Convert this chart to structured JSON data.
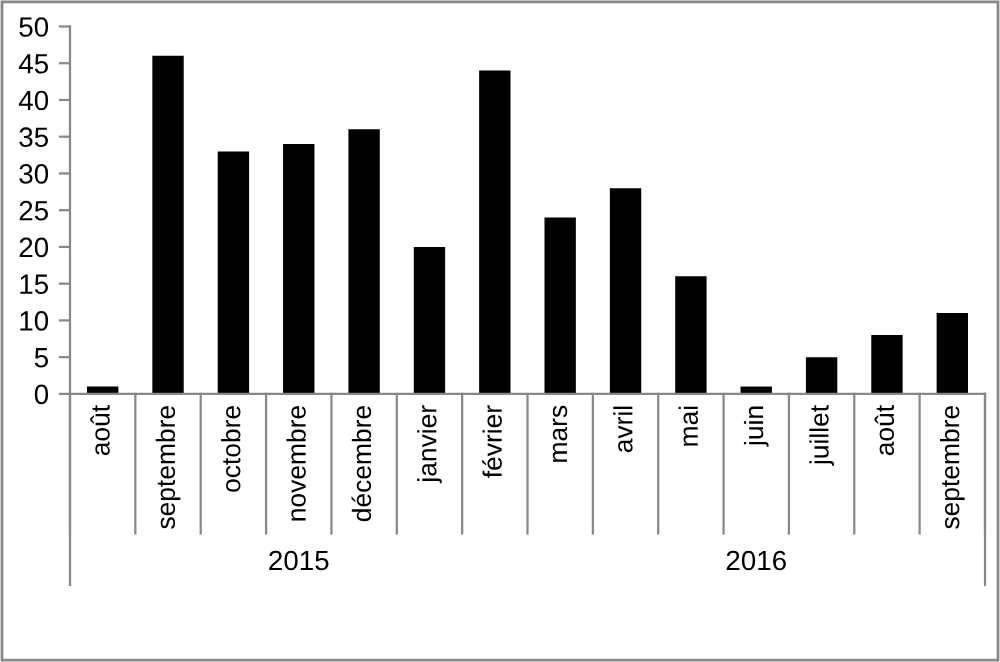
{
  "chart_data": {
    "type": "bar",
    "categories": [
      "août",
      "septembre",
      "octobre",
      "novembre",
      "décembre",
      "janvier",
      "février",
      "mars",
      "avril",
      "mai",
      "juin",
      "juillet",
      "août",
      "septembre"
    ],
    "values": [
      1,
      46,
      33,
      34,
      36,
      20,
      44,
      24,
      28,
      16,
      1,
      5,
      8,
      11
    ],
    "color": "#000000",
    "ylim": [
      0,
      50
    ],
    "yticks": [
      0,
      5,
      10,
      15,
      20,
      25,
      30,
      35,
      40,
      45,
      50
    ],
    "annotations": [
      "2015",
      "2016"
    ]
  }
}
